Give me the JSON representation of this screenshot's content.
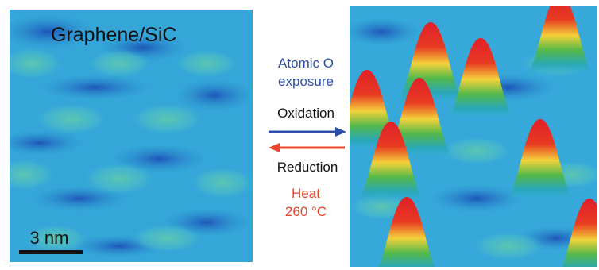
{
  "left_panel": {
    "label": "Graphene/SiC",
    "scale_bar": "3 nm"
  },
  "middle": {
    "forward_condition": [
      "Atomic O",
      "exposure"
    ],
    "forward": "Oxidation",
    "reverse": "Reduction",
    "reverse_condition": [
      "Heat",
      "260 °C"
    ]
  }
}
